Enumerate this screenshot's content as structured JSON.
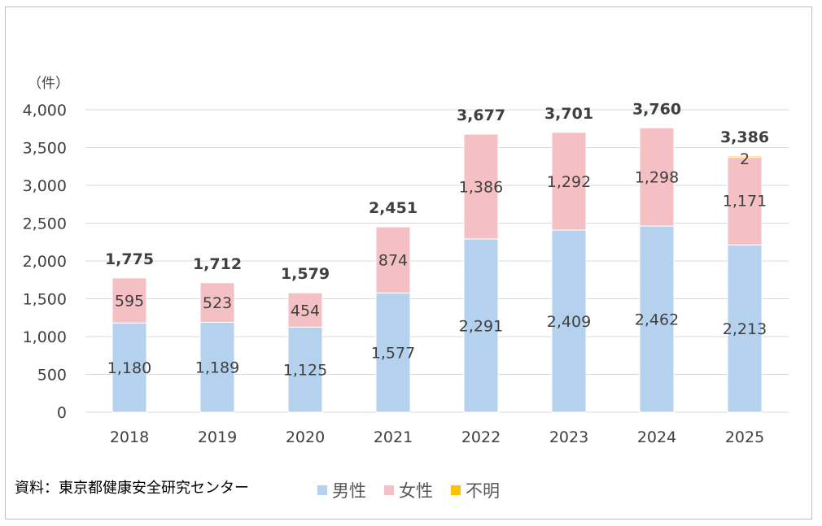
{
  "source_note": "資料：東京都健康安全研究センター",
  "chart_data": {
    "type": "bar",
    "stacked": true,
    "unit_label": "（件）",
    "categories": [
      "2018",
      "2019",
      "2020",
      "2021",
      "2022",
      "2023",
      "2024",
      "2025"
    ],
    "series": [
      {
        "name": "男性",
        "color": "#b4d2ee",
        "values": [
          1180,
          1189,
          1125,
          1577,
          2291,
          2409,
          2462,
          2213
        ]
      },
      {
        "name": "女性",
        "color": "#f4c0c3",
        "values": [
          595,
          523,
          454,
          874,
          1386,
          1292,
          1298,
          1171
        ]
      },
      {
        "name": "不明",
        "color": "#ffc000",
        "values": [
          0,
          0,
          0,
          0,
          0,
          0,
          0,
          2
        ]
      }
    ],
    "totals": [
      1775,
      1712,
      1579,
      2451,
      3677,
      3701,
      3760,
      3386
    ],
    "ylim": [
      0,
      4000
    ],
    "yticks": [
      0,
      500,
      1000,
      1500,
      2000,
      2500,
      3000,
      3500,
      4000
    ],
    "grid": true,
    "legend_position": "bottom"
  }
}
